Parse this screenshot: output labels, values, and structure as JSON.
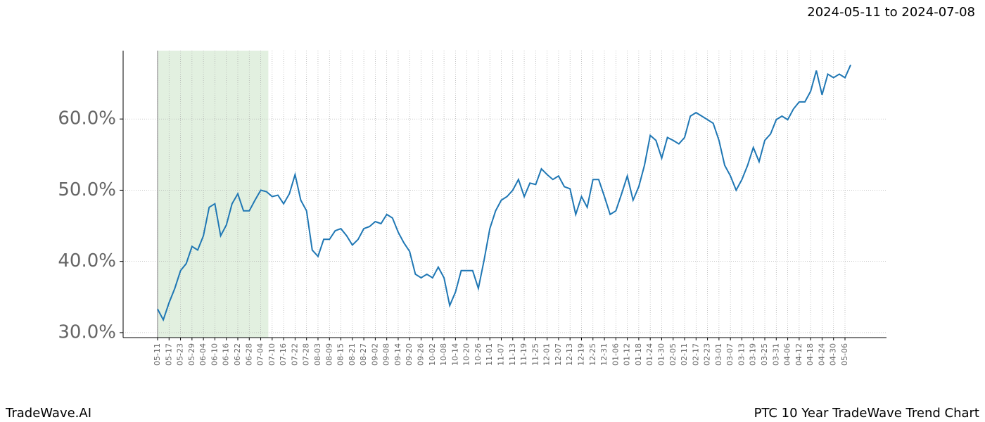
{
  "chart_data": {
    "type": "line",
    "date_range": "2024-05-11 to 2024-07-08",
    "brand": "TradeWave.AI",
    "title": "PTC 10 Year TradeWave Trend Chart",
    "categories": [
      "05-11",
      null,
      "05-17",
      null,
      "05-23",
      null,
      "05-29",
      null,
      "06-04",
      null,
      "06-10",
      null,
      "06-16",
      null,
      "06-22",
      null,
      "06-28",
      null,
      "07-04",
      null,
      "07-10",
      null,
      "07-16",
      null,
      "07-22",
      null,
      "07-28",
      null,
      "08-03",
      null,
      "08-09",
      null,
      "08-15",
      null,
      "08-21",
      null,
      "08-27",
      null,
      "09-02",
      null,
      "09-08",
      null,
      "09-14",
      null,
      "09-20",
      null,
      "09-26",
      null,
      "10-02",
      null,
      "10-08",
      null,
      "10-14",
      null,
      "10-20",
      null,
      "10-26",
      null,
      "11-01",
      null,
      "11-07",
      null,
      "11-13",
      null,
      "11-19",
      null,
      "11-25",
      null,
      "12-01",
      null,
      "12-07",
      null,
      "12-13",
      null,
      "12-19",
      null,
      "12-25",
      null,
      "12-31",
      null,
      "01-06",
      null,
      "01-12",
      null,
      "01-18",
      null,
      "01-24",
      null,
      "01-30",
      null,
      "02-05",
      null,
      "02-11",
      null,
      "02-17",
      null,
      "02-23",
      null,
      "03-01",
      null,
      "03-07",
      null,
      "03-13",
      null,
      "03-19",
      null,
      "03-25",
      null,
      "03-31",
      null,
      "04-06",
      null,
      "04-12",
      null,
      "04-18",
      null,
      "04-24",
      null,
      "04-30",
      null,
      "05-06",
      null
    ],
    "series": [
      {
        "color": "#1f77b4",
        "values": [
          33.3,
          31.8,
          34.2,
          36.2,
          38.7,
          39.7,
          42.1,
          41.6,
          43.6,
          47.6,
          48.1,
          43.6,
          45.1,
          48.1,
          49.5,
          47.1,
          47.1,
          48.6,
          50.0,
          49.8,
          49.1,
          49.3,
          48.1,
          49.5,
          52.2,
          48.6,
          47.1,
          41.6,
          40.7,
          43.1,
          43.1,
          44.3,
          44.6,
          43.6,
          42.3,
          43.1,
          44.6,
          44.9,
          45.6,
          45.3,
          46.6,
          46.1,
          44.1,
          42.6,
          41.4,
          38.2,
          37.7,
          38.2,
          37.7,
          39.2,
          37.7,
          33.8,
          35.7,
          38.7,
          38.7,
          38.7,
          36.2,
          40.2,
          44.6,
          47.1,
          48.6,
          49.1,
          50.0,
          51.5,
          49.1,
          51.0,
          50.8,
          53.0,
          52.2,
          51.5,
          52.0,
          50.5,
          50.2,
          46.6,
          49.1,
          47.6,
          51.5,
          51.5,
          49.1,
          46.6,
          47.1,
          49.5,
          52.0,
          48.6,
          50.5,
          53.5,
          57.7,
          57.0,
          54.5,
          57.4,
          57.0,
          56.5,
          57.4,
          60.4,
          60.9,
          60.4,
          59.9,
          59.4,
          57.0,
          53.5,
          52.0,
          50.0,
          51.5,
          53.5,
          56.0,
          54.0,
          57.0,
          57.9,
          59.9,
          60.4,
          59.9,
          61.4,
          62.4,
          62.4,
          63.9,
          66.8,
          63.4,
          66.3,
          65.8,
          66.3,
          65.8,
          67.6
        ]
      }
    ],
    "ylim": [
      29.3,
      69.6
    ],
    "yticks": [
      {
        "value": 30,
        "label": "30.0%"
      },
      {
        "value": 40,
        "label": "40.0%"
      },
      {
        "value": 50,
        "label": "50.0%"
      },
      {
        "value": 60,
        "label": "60.0%"
      }
    ],
    "grid": true,
    "highlight": {
      "start": 0,
      "end": 19.33,
      "color": "#d6ead3"
    }
  }
}
